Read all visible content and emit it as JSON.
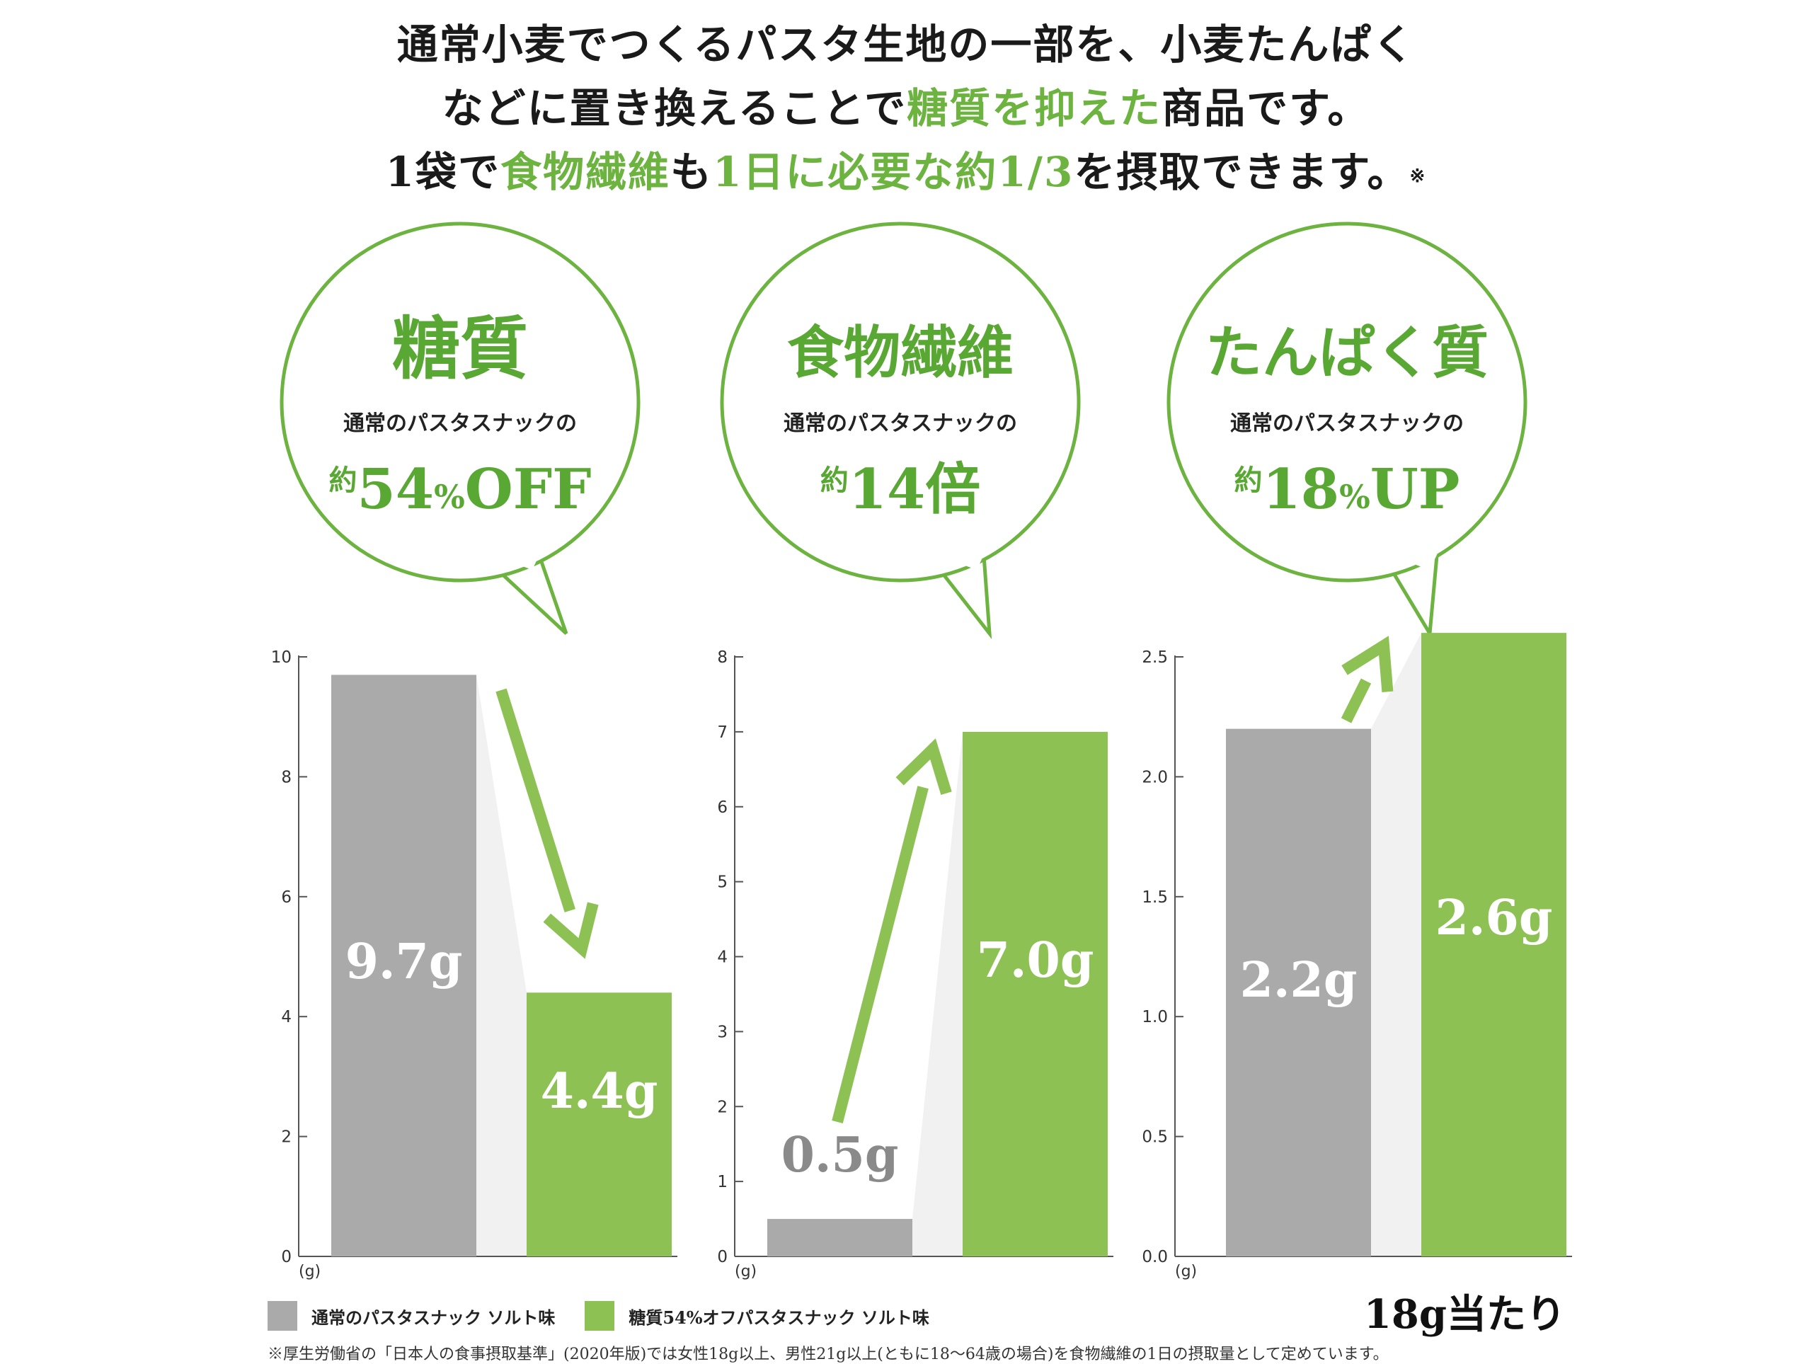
{
  "intro": {
    "line1": "通常小麦でつくるパスタ生地の一部を、小麦たんぱく",
    "line2_a": "などに置き換えることで",
    "line2_b": "糖質を抑えた",
    "line2_c": "商品です。",
    "line3_a": "1袋で",
    "line3_b": "食物繊維",
    "line3_c": "も",
    "line3_d": "1日に必要な約1/3",
    "line3_e": "を摂取できます。",
    "line3_mark": "※"
  },
  "colors": {
    "regular": "#aaaaaa",
    "low_carb": "#8ec153",
    "accent": "#6cb33f"
  },
  "chart_data": [
    {
      "type": "bar",
      "bubble": {
        "title": "糖質",
        "sub": "通常のパスタスナックの",
        "prefix": "約",
        "num": "54",
        "pct": "%",
        "suffix": "OFF"
      },
      "categories": [
        "通常のパスタスナック ソルト味",
        "糖質54%オフパスタスナック ソルト味"
      ],
      "values": [
        9.7,
        4.4
      ],
      "data_labels": [
        "9.7g",
        "4.4g"
      ],
      "ylim": [
        0,
        10
      ],
      "yticks": [
        "0",
        "2",
        "4",
        "6",
        "8",
        "10"
      ],
      "ytick_values": [
        0,
        2,
        4,
        6,
        8,
        10
      ],
      "unit": "(g)",
      "arrow": "down"
    },
    {
      "type": "bar",
      "bubble": {
        "title": "食物繊維",
        "sub": "通常のパスタスナックの",
        "prefix": "約",
        "num": "14",
        "pct": "",
        "suffix": "倍"
      },
      "categories": [
        "通常のパスタスナック ソルト味",
        "糖質54%オフパスタスナック ソルト味"
      ],
      "values": [
        0.5,
        7.0
      ],
      "data_labels": [
        "0.5g",
        "7.0g"
      ],
      "ylim": [
        0,
        8
      ],
      "yticks": [
        "0",
        "1",
        "2",
        "3",
        "4",
        "5",
        "6",
        "7",
        "8"
      ],
      "ytick_values": [
        0,
        1,
        2,
        3,
        4,
        5,
        6,
        7,
        8
      ],
      "unit": "(g)",
      "arrow": "up"
    },
    {
      "type": "bar",
      "bubble": {
        "title": "たんぱく質",
        "sub": "通常のパスタスナックの",
        "prefix": "約",
        "num": "18",
        "pct": "%",
        "suffix": "UP"
      },
      "categories": [
        "通常のパスタスナック ソルト味",
        "糖質54%オフパスタスナック ソルト味"
      ],
      "values": [
        2.2,
        2.6
      ],
      "data_labels": [
        "2.2g",
        "2.6g"
      ],
      "ylim": [
        0,
        2.5
      ],
      "yticks": [
        "0.0",
        "0.5",
        "1.0",
        "1.5",
        "2.0",
        "2.5"
      ],
      "ytick_values": [
        0,
        0.5,
        1.0,
        1.5,
        2.0,
        2.5
      ],
      "unit": "(g)",
      "arrow": "up"
    }
  ],
  "legend": {
    "regular": "通常のパスタスナック ソルト味",
    "low_carb": "糖質54%オフパスタスナック ソルト味"
  },
  "per_serving": "18g当たり",
  "footnote": "※厚生労働省の「日本人の食事摂取基準」(2020年版)では女性18g以上、男性21g以上(ともに18〜64歳の場合)を食物繊維の1日の摂取量として定めています。"
}
